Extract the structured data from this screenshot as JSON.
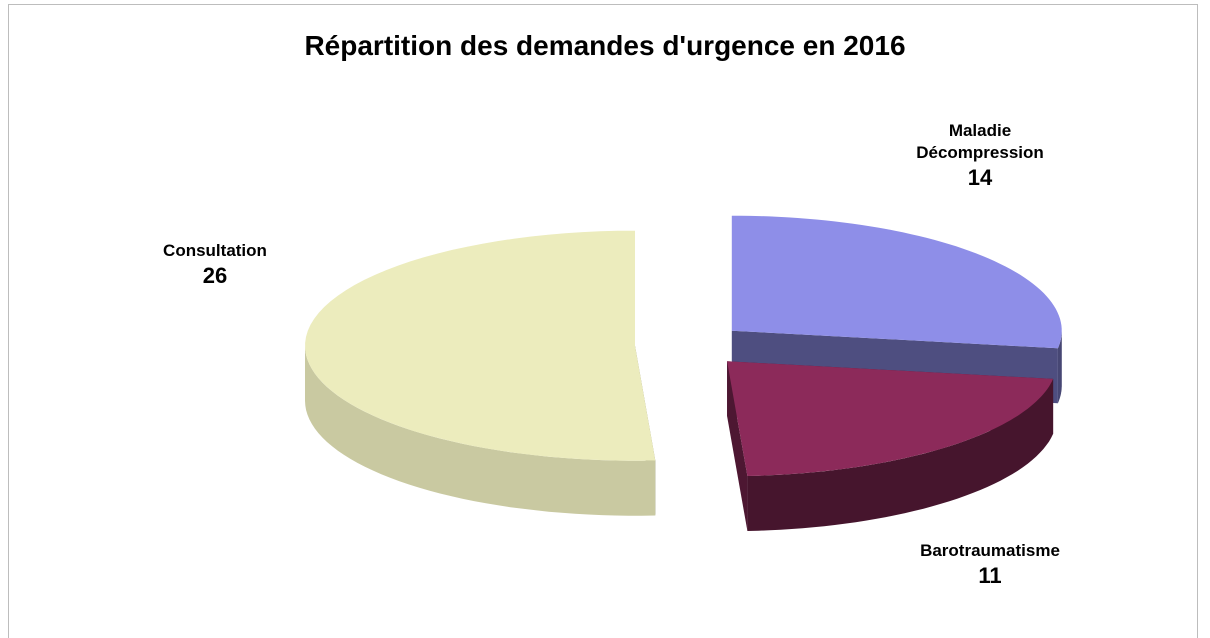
{
  "chart_data": {
    "type": "pie",
    "title": "Répartition des demandes d'urgence en 2016",
    "categories": [
      "Maladie Décompression",
      "Barotraumatisme",
      "Consultation"
    ],
    "values": [
      14,
      11,
      26
    ],
    "colors": [
      "#8e8ee8",
      "#8c2a5a",
      "#ececbd"
    ],
    "exploded": true,
    "three_d": true
  }
}
